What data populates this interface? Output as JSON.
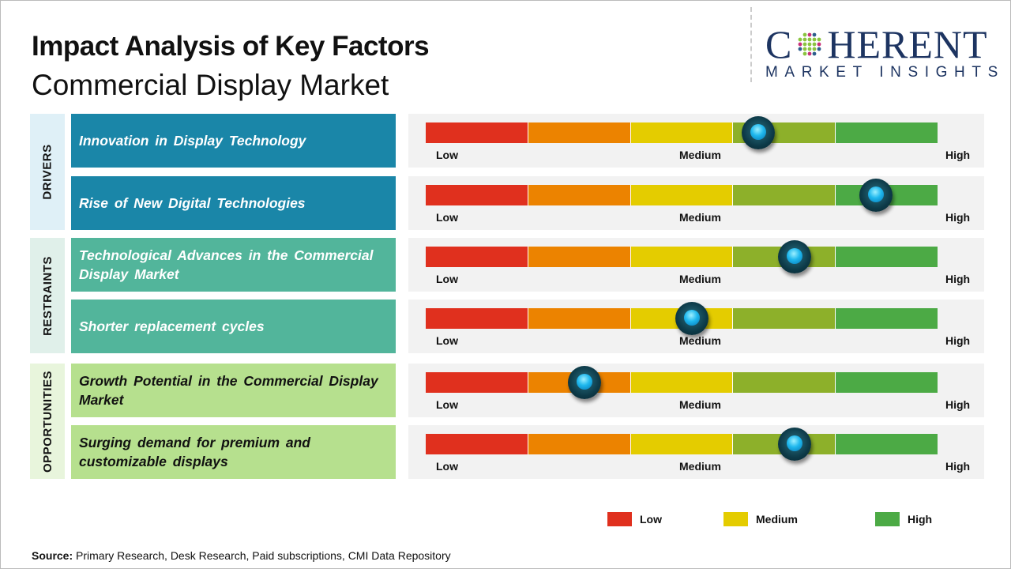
{
  "header": {
    "title": "Impact Analysis of Key Factors",
    "subtitle": "Commercial Display Market"
  },
  "logo": {
    "line1a": "C",
    "line1b": "HERENT",
    "line2": "MARKET INSIGHTS"
  },
  "scale": {
    "low": "Low",
    "medium": "Medium",
    "high": "High"
  },
  "colors": {
    "red": "#e0301e",
    "orange": "#ec8300",
    "yellow": "#e4cc00",
    "olive": "#8db02a",
    "green": "#4caa45"
  },
  "categories": [
    {
      "name": "DRIVERS",
      "bg": "#dff0f7",
      "label_bg": "#1a86a8",
      "text": "#ffffff"
    },
    {
      "name": "RESTRAINTS",
      "bg": "#e0f0ea",
      "label_bg": "#52b59b",
      "text": "#ffffff"
    },
    {
      "name": "OPPORTUNITIES",
      "bg": "#e8f5dc",
      "label_bg": "#b6e08e",
      "text": "#111111"
    }
  ],
  "chart_data": {
    "type": "gauge",
    "title": "Impact Analysis of Key Factors - Commercial Display Market",
    "scale": [
      "Low",
      "Medium",
      "High"
    ],
    "range": [
      0,
      1
    ],
    "factors": [
      {
        "category": 0,
        "label": "Innovation in Display Technology",
        "impact": 0.65
      },
      {
        "category": 0,
        "label": "Rise of New Digital Technologies",
        "impact": 0.88
      },
      {
        "category": 1,
        "label": "Technological Advances in the Commercial Display Market",
        "impact": 0.72
      },
      {
        "category": 1,
        "label": "Shorter replacement cycles",
        "impact": 0.52
      },
      {
        "category": 2,
        "label": "Growth Potential in the Commercial Display Market",
        "impact": 0.31
      },
      {
        "category": 2,
        "label": "Surging demand for premium and customizable displays",
        "impact": 0.72
      }
    ]
  },
  "legend": [
    {
      "label": "Low",
      "color": "#e0301e"
    },
    {
      "label": "Medium",
      "color": "#e4cc00"
    },
    {
      "label": "High",
      "color": "#4caa45"
    }
  ],
  "source": {
    "prefix": "Source:",
    "text": " Primary Research, Desk Research, Paid subscriptions, CMI Data Repository"
  }
}
